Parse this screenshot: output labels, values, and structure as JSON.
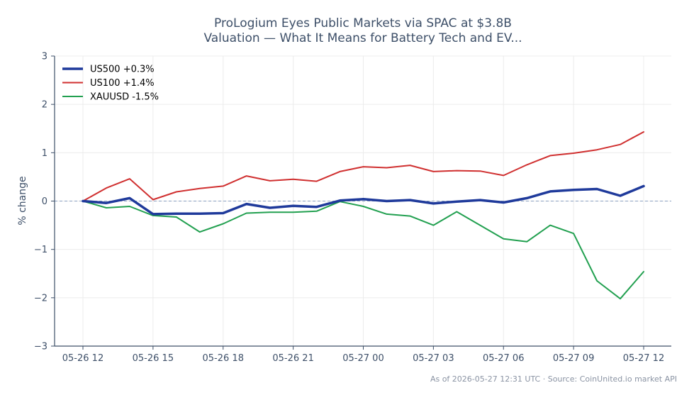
{
  "chart_data": {
    "type": "line",
    "title": [
      "ProLogium Eyes Public Markets via SPAC at $3.8B",
      "Valuation — What It Means for Battery Tech and EV..."
    ],
    "xlabel": "",
    "ylabel": "% change",
    "ylim": [
      -3,
      3
    ],
    "yticks": [
      3,
      2,
      1,
      0,
      -1,
      -2,
      -3
    ],
    "ytick_labels": [
      "3",
      "2",
      "1",
      "0",
      "−1",
      "−2",
      "−3"
    ],
    "x": [
      0,
      1,
      2,
      3,
      4,
      5,
      6,
      7,
      8,
      9,
      10,
      11,
      12,
      13,
      14,
      15,
      16,
      17,
      18,
      19,
      20,
      21,
      22,
      23,
      24
    ],
    "xticks": [
      {
        "x": 0,
        "label": "05-26 12"
      },
      {
        "x": 3,
        "label": "05-26 15"
      },
      {
        "x": 6,
        "label": "05-26 18"
      },
      {
        "x": 9,
        "label": "05-26 21"
      },
      {
        "x": 12,
        "label": "05-27 00"
      },
      {
        "x": 15,
        "label": "05-27 03"
      },
      {
        "x": 18,
        "label": "05-27 06"
      },
      {
        "x": 21,
        "label": "05-27 09"
      },
      {
        "x": 24,
        "label": "05-27 12"
      }
    ],
    "grid": true,
    "zero_line": true,
    "legend_position": "top-left",
    "series": [
      {
        "name": "US500 +0.3%",
        "color": "#1f3a9b",
        "width": 3.5,
        "values": [
          0.0,
          -0.04,
          0.06,
          -0.27,
          -0.26,
          -0.26,
          -0.25,
          -0.06,
          -0.14,
          -0.1,
          -0.12,
          0.01,
          0.04,
          0.0,
          0.02,
          -0.05,
          -0.01,
          0.02,
          -0.03,
          0.06,
          0.2,
          0.23,
          0.25,
          0.11,
          0.31
        ]
      },
      {
        "name": "US100 +1.4%",
        "color": "#d03030",
        "width": 2,
        "values": [
          0.0,
          0.27,
          0.46,
          0.03,
          0.19,
          0.26,
          0.31,
          0.52,
          0.42,
          0.45,
          0.41,
          0.61,
          0.71,
          0.69,
          0.74,
          0.61,
          0.63,
          0.62,
          0.53,
          0.75,
          0.94,
          0.99,
          1.06,
          1.17,
          1.43
        ]
      },
      {
        "name": "XAUUSD -1.5%",
        "color": "#22a050",
        "width": 2,
        "values": [
          0.0,
          -0.14,
          -0.11,
          -0.3,
          -0.33,
          -0.64,
          -0.47,
          -0.25,
          -0.23,
          -0.23,
          -0.21,
          -0.01,
          -0.11,
          -0.27,
          -0.31,
          -0.5,
          -0.22,
          -0.5,
          -0.78,
          -0.84,
          -0.5,
          -0.67,
          -1.65,
          -2.02,
          -1.46
        ]
      }
    ]
  },
  "footer": "As of 2026-05-27 12:31 UTC · Source: CoinUnited.io market API"
}
